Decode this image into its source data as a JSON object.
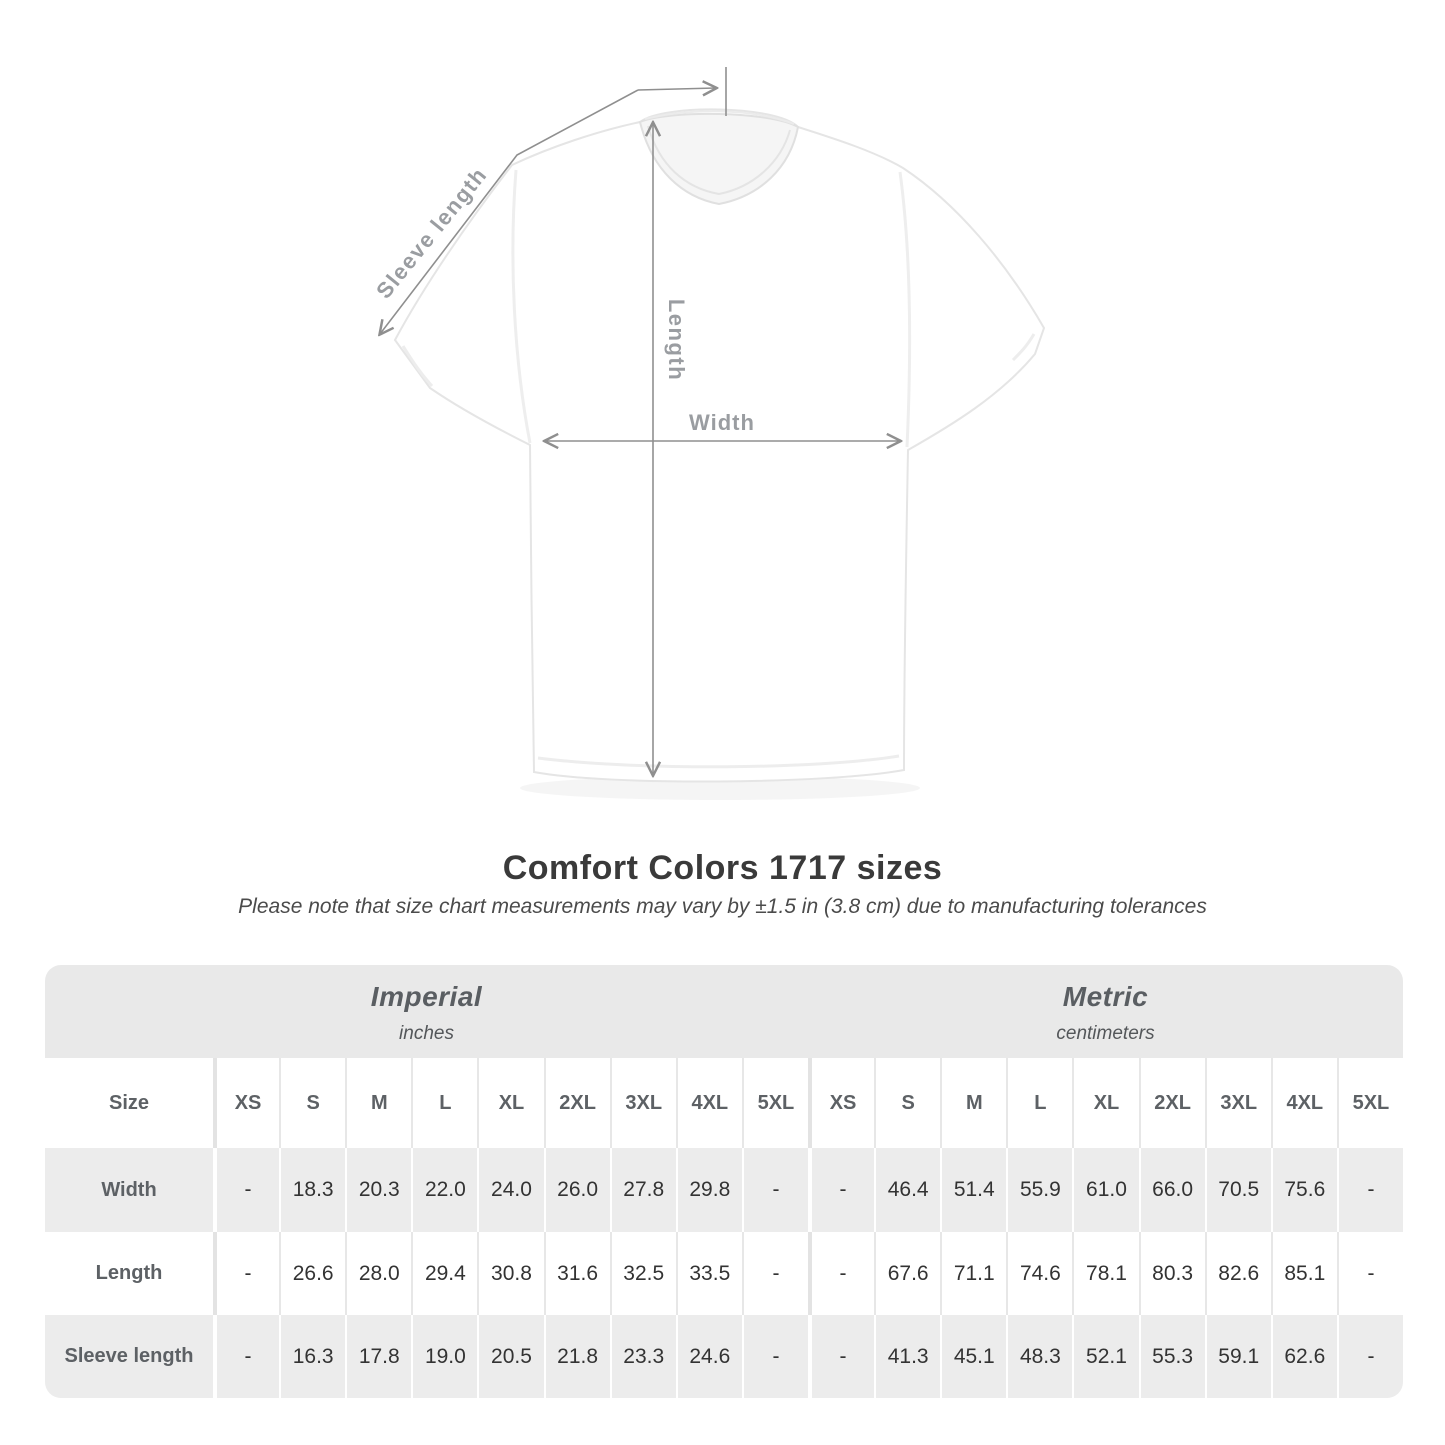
{
  "heading": {
    "title": "Comfort Colors 1717 sizes",
    "note": "Please note that size chart measurements may vary by ±1.5 in (3.8 cm) due to manufacturing tolerances"
  },
  "diagram": {
    "sleeve_label": "Sleeve length",
    "length_label": "Length",
    "width_label": "Width",
    "line_color": "#8f8f8f",
    "label_color": "#9a9da1"
  },
  "table": {
    "size_label": "Size",
    "sizes": [
      "XS",
      "S",
      "M",
      "L",
      "XL",
      "2XL",
      "3XL",
      "4XL",
      "5XL"
    ],
    "units": [
      {
        "name": "Imperial",
        "sub": "inches"
      },
      {
        "name": "Metric",
        "sub": "centimeters"
      }
    ],
    "rows": [
      {
        "label": "Width",
        "imperial": [
          "-",
          "18.3",
          "20.3",
          "22.0",
          "24.0",
          "26.0",
          "27.8",
          "29.8",
          "-"
        ],
        "metric": [
          "-",
          "46.4",
          "51.4",
          "55.9",
          "61.0",
          "66.0",
          "70.5",
          "75.6",
          "-"
        ]
      },
      {
        "label": "Length",
        "imperial": [
          "-",
          "26.6",
          "28.0",
          "29.4",
          "30.8",
          "31.6",
          "32.5",
          "33.5",
          "-"
        ],
        "metric": [
          "-",
          "67.6",
          "71.1",
          "74.6",
          "78.1",
          "80.3",
          "82.6",
          "85.1",
          "-"
        ]
      },
      {
        "label": "Sleeve length",
        "imperial": [
          "-",
          "16.3",
          "17.8",
          "19.0",
          "20.5",
          "21.8",
          "23.3",
          "24.6",
          "-"
        ],
        "metric": [
          "-",
          "41.3",
          "45.1",
          "48.3",
          "52.1",
          "55.3",
          "59.1",
          "62.6",
          "-"
        ]
      }
    ],
    "colors": {
      "band": "#e9e9e9",
      "row_alt": "#ececec",
      "header_text": "#5d6165",
      "value_text": "#333333"
    }
  },
  "chart_data": {
    "type": "table",
    "title": "Comfort Colors 1717 sizes",
    "note": "Please note that size chart measurements may vary by ±1.5 in (3.8 cm) due to manufacturing tolerances",
    "sizes": [
      "XS",
      "S",
      "M",
      "L",
      "XL",
      "2XL",
      "3XL",
      "4XL",
      "5XL"
    ],
    "unit_groups": [
      {
        "name": "Imperial",
        "unit": "inches",
        "rows": [
          {
            "label": "Width",
            "values": [
              null,
              18.3,
              20.3,
              22.0,
              24.0,
              26.0,
              27.8,
              29.8,
              null
            ]
          },
          {
            "label": "Length",
            "values": [
              null,
              26.6,
              28.0,
              29.4,
              30.8,
              31.6,
              32.5,
              33.5,
              null
            ]
          },
          {
            "label": "Sleeve length",
            "values": [
              null,
              16.3,
              17.8,
              19.0,
              20.5,
              21.8,
              23.3,
              24.6,
              null
            ]
          }
        ]
      },
      {
        "name": "Metric",
        "unit": "centimeters",
        "rows": [
          {
            "label": "Width",
            "values": [
              null,
              46.4,
              51.4,
              55.9,
              61.0,
              66.0,
              70.5,
              75.6,
              null
            ]
          },
          {
            "label": "Length",
            "values": [
              null,
              67.6,
              71.1,
              74.6,
              78.1,
              80.3,
              82.6,
              85.1,
              null
            ]
          },
          {
            "label": "Sleeve length",
            "values": [
              null,
              41.3,
              45.1,
              48.3,
              52.1,
              55.3,
              59.1,
              62.6,
              null
            ]
          }
        ]
      }
    ]
  }
}
